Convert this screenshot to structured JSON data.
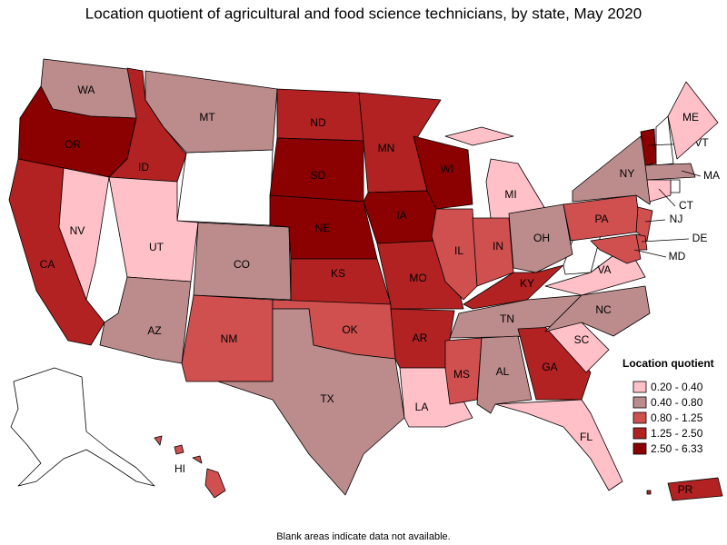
{
  "title": "Location quotient of agricultural and food science technicians, by state, May 2020",
  "states": [
    {
      "label": "WA",
      "color": "#bc8c8c"
    },
    {
      "label": "OR",
      "color": "#8b0000"
    },
    {
      "label": "CA",
      "color": "#b22222"
    },
    {
      "label": "NV",
      "color": "#ffc0c8"
    },
    {
      "label": "ID",
      "color": "#b22222"
    },
    {
      "label": "MT",
      "color": "#bc8c8c"
    },
    {
      "label": "UT",
      "color": "#ffc0c8"
    },
    {
      "label": "AZ",
      "color": "#bc8c8c"
    },
    {
      "label": "CO",
      "color": "#bc8c8c"
    },
    {
      "label": "NM",
      "color": "#d05050"
    },
    {
      "label": "ND",
      "color": "#b22222"
    },
    {
      "label": "SD",
      "color": "#8b0000"
    },
    {
      "label": "NE",
      "color": "#8b0000"
    },
    {
      "label": "KS",
      "color": "#b22222"
    },
    {
      "label": "OK",
      "color": "#d05050"
    },
    {
      "label": "TX",
      "color": "#bc8c8c"
    },
    {
      "label": "MN",
      "color": "#b22222"
    },
    {
      "label": "IA",
      "color": "#8b0000"
    },
    {
      "label": "MO",
      "color": "#b22222"
    },
    {
      "label": "AR",
      "color": "#b22222"
    },
    {
      "label": "LA",
      "color": "#ffc0c8"
    },
    {
      "label": "WI",
      "color": "#8b0000"
    },
    {
      "label": "IL",
      "color": "#d05050"
    },
    {
      "label": "MI",
      "color": "#ffc0c8"
    },
    {
      "label": "IN",
      "color": "#d05050"
    },
    {
      "label": "OH",
      "color": "#bc8c8c"
    },
    {
      "label": "KY",
      "color": "#b22222"
    },
    {
      "label": "TN",
      "color": "#bc8c8c"
    },
    {
      "label": "MS",
      "color": "#d05050"
    },
    {
      "label": "AL",
      "color": "#bc8c8c"
    },
    {
      "label": "GA",
      "color": "#b22222"
    },
    {
      "label": "FL",
      "color": "#ffc0c8"
    },
    {
      "label": "SC",
      "color": "#ffc0c8"
    },
    {
      "label": "NC",
      "color": "#bc8c8c"
    },
    {
      "label": "VA",
      "color": "#ffc0c8"
    },
    {
      "label": "PA",
      "color": "#d05050"
    },
    {
      "label": "NY",
      "color": "#bc8c8c"
    },
    {
      "label": "VT",
      "color": "#8b0000"
    },
    {
      "label": "ME",
      "color": "#ffc0c8"
    },
    {
      "label": "MA",
      "color": "#bc8c8c"
    },
    {
      "label": "CT",
      "color": "#ffc0c8"
    },
    {
      "label": "NJ",
      "color": "#d05050"
    },
    {
      "label": "DE",
      "color": "#d05050"
    },
    {
      "label": "MD",
      "color": "#d05050"
    },
    {
      "label": "HI",
      "color": "#d05050"
    },
    {
      "label": "PR",
      "color": "#b22222"
    }
  ],
  "legend": {
    "title": "Location quotient",
    "items": [
      {
        "label": "0.20 - 0.40",
        "color": "#ffc0c8"
      },
      {
        "label": "0.40 - 0.80",
        "color": "#bc8c8c"
      },
      {
        "label": "0.80 - 1.25",
        "color": "#d05050"
      },
      {
        "label": "1.25 - 2.50",
        "color": "#b22222"
      },
      {
        "label": "2.50 - 6.33",
        "color": "#8b0000"
      }
    ]
  },
  "note": "Blank areas indicate data not available."
}
